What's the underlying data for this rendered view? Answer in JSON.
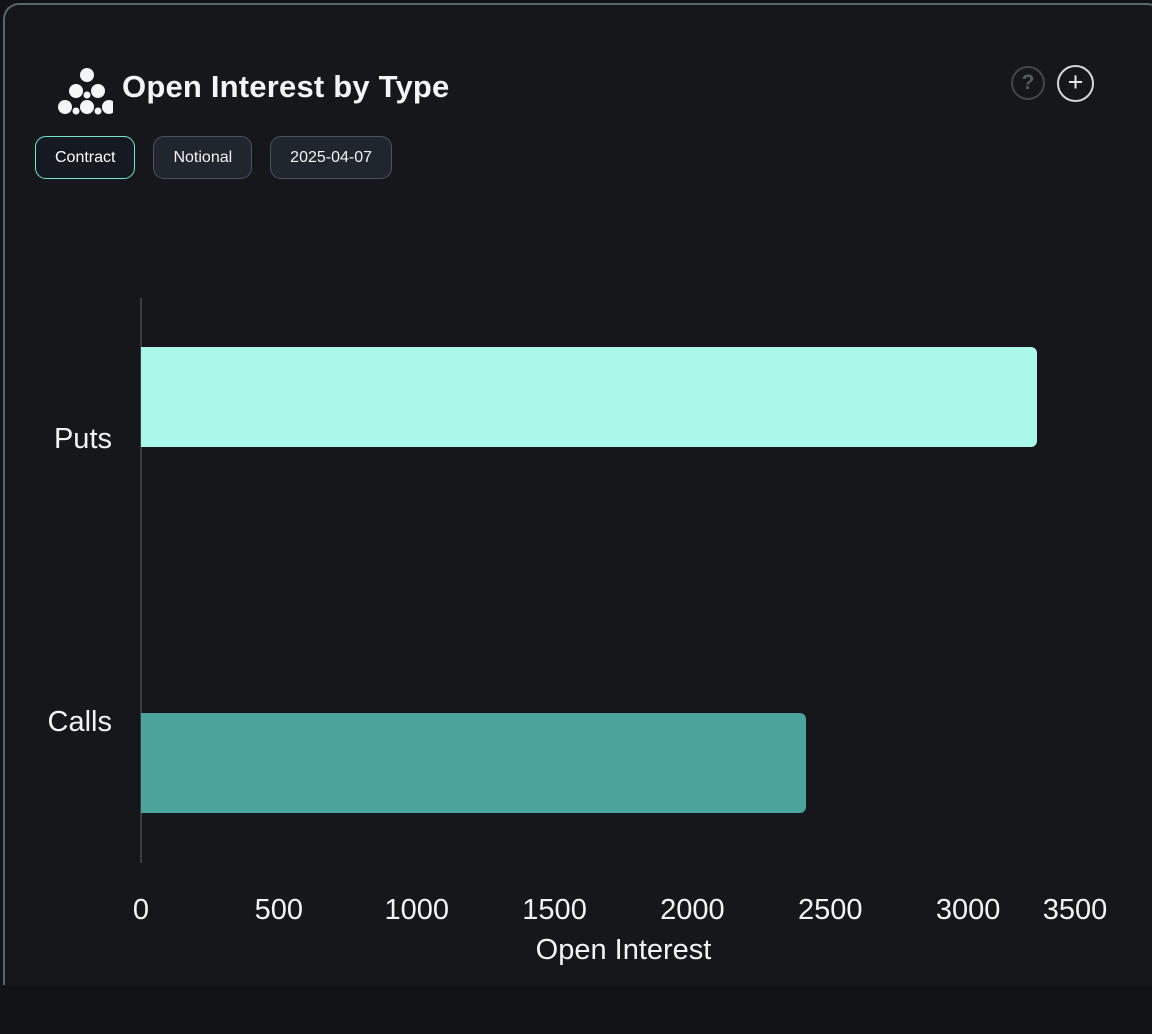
{
  "header": {
    "title": "Open Interest by Type",
    "help_glyph": "?",
    "add_glyph": "+"
  },
  "toolbar": {
    "buttons": [
      {
        "label": "Contract",
        "selected": true
      },
      {
        "label": "Notional",
        "selected": false
      },
      {
        "label": "2025-04-07",
        "selected": false
      }
    ]
  },
  "chart_data": {
    "type": "bar",
    "orientation": "horizontal",
    "title": "Open Interest by Type",
    "categories": [
      "Puts",
      "Calls"
    ],
    "values": [
      3250,
      2410
    ],
    "bar_colors": [
      "#a9f8e9",
      "#4aa49c"
    ],
    "xlabel": "Open Interest",
    "ylabel": "",
    "xticks": [
      0,
      500,
      1000,
      1500,
      2000,
      2500,
      3000,
      3500
    ],
    "xlim": [
      0,
      3500
    ],
    "grid": false,
    "legend": false
  },
  "colors": {
    "card_background": "#15171a",
    "card_border": "#5c6470",
    "accent_mint": "#71e6cd",
    "text_primary": "#f2f3f4",
    "axis_line": "#3a3e43"
  }
}
